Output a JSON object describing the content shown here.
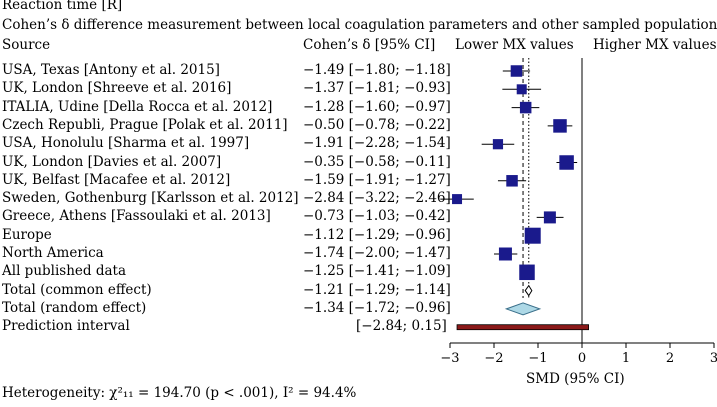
{
  "header": {
    "panel_label": "Reaction time [R]",
    "title": "Cohen’s δ difference measurement between local coagulation parameters and other sampled populations",
    "col_source": "Source",
    "col_effect": "Cohen’s δ [95% CI]",
    "lower_label": "Lower MX values",
    "higher_label": "Higher MX values"
  },
  "footer": {
    "heterogeneity": "Heterogeneity: χ²₁₁ = 194.70 (p < .001), I² = 94.4%"
  },
  "chart_data": {
    "type": "forest",
    "title": "Cohen’s δ difference measurement between local coagulation parameters and other sampled populations",
    "xlabel": "SMD (95% CI)",
    "xlim": [
      -3,
      3
    ],
    "xticks": [
      -3,
      -2,
      -1,
      0,
      1,
      2,
      3
    ],
    "reference_line": 0,
    "common_effect_line": -1.21,
    "random_effect_line": -1.34,
    "rows": [
      {
        "label": "USA, Texas [Antony et al. 2015]",
        "text": "−1.49 [−1.80; −1.18]",
        "est": -1.49,
        "lo": -1.8,
        "hi": -1.18,
        "kind": "study",
        "weight": 0.55
      },
      {
        "label": "UK, London [Shreeve et al. 2016]",
        "text": "−1.37 [−1.81; −0.93]",
        "est": -1.37,
        "lo": -1.81,
        "hi": -0.93,
        "kind": "study",
        "weight": 0.4
      },
      {
        "label": "ITALIA, Udine [Della Rocca et al. 2012]",
        "text": "−1.28 [−1.60; −0.97]",
        "est": -1.28,
        "lo": -1.6,
        "hi": -0.97,
        "kind": "study",
        "weight": 0.55
      },
      {
        "label": "Czech Republi, Prague [Polak et al. 2011]",
        "text": "−0.50 [−0.78; −0.22]",
        "est": -0.5,
        "lo": -0.78,
        "hi": -0.22,
        "kind": "study",
        "weight": 0.75
      },
      {
        "label": "USA, Honolulu [Sharma et al. 1997]",
        "text": "−1.91 [−2.28; −1.54]",
        "est": -1.91,
        "lo": -2.28,
        "hi": -1.54,
        "kind": "study",
        "weight": 0.42
      },
      {
        "label": "UK, London [Davies et al. 2007]",
        "text": "−0.35 [−0.58; −0.11]",
        "est": -0.35,
        "lo": -0.58,
        "hi": -0.11,
        "kind": "study",
        "weight": 0.85
      },
      {
        "label": "UK, Belfast [Macafee et al. 2012]",
        "text": "−1.59 [−1.91; −1.27]",
        "est": -1.59,
        "lo": -1.91,
        "hi": -1.27,
        "kind": "study",
        "weight": 0.55
      },
      {
        "label": "Sweden, Gothenburg [Karlsson et al. 2012]",
        "text": "−2.84 [−3.22; −2.46]",
        "est": -2.84,
        "lo": -3.22,
        "hi": -2.46,
        "kind": "study",
        "weight": 0.4
      },
      {
        "label": "Greece, Athens [Fassoulaki et al. 2013]",
        "text": "−0.73 [−1.03; −0.42]",
        "est": -0.73,
        "lo": -1.03,
        "hi": -0.42,
        "kind": "study",
        "weight": 0.6
      },
      {
        "label": "Europe",
        "text": "−1.12 [−1.29; −0.96]",
        "est": -1.12,
        "lo": -1.29,
        "hi": -0.96,
        "kind": "study",
        "weight": 1.0
      },
      {
        "label": "North America",
        "text": "−1.74 [−2.00; −1.47]",
        "est": -1.74,
        "lo": -2.0,
        "hi": -1.47,
        "kind": "study",
        "weight": 0.7
      },
      {
        "label": "All published data",
        "text": "−1.25 [−1.41; −1.09]",
        "est": -1.25,
        "lo": -1.41,
        "hi": -1.09,
        "kind": "study",
        "weight": 0.95
      },
      {
        "label": "Total (common effect)",
        "text": "−1.21 [−1.29; −1.14]",
        "est": -1.21,
        "lo": -1.29,
        "hi": -1.14,
        "kind": "diamond-common"
      },
      {
        "label": "Total (random effect)",
        "text": "−1.34 [−1.72; −0.96]",
        "est": -1.34,
        "lo": -1.72,
        "hi": -0.96,
        "kind": "diamond-random"
      },
      {
        "label": "Prediction interval",
        "text": "[−2.84; 0.15]",
        "est": null,
        "lo": -2.84,
        "hi": 0.15,
        "kind": "prediction"
      }
    ],
    "colors": {
      "square": "#1a1a8c",
      "diamond_random": "#add8e6",
      "prediction": "#8b1a1a",
      "axis": "#000000"
    }
  }
}
